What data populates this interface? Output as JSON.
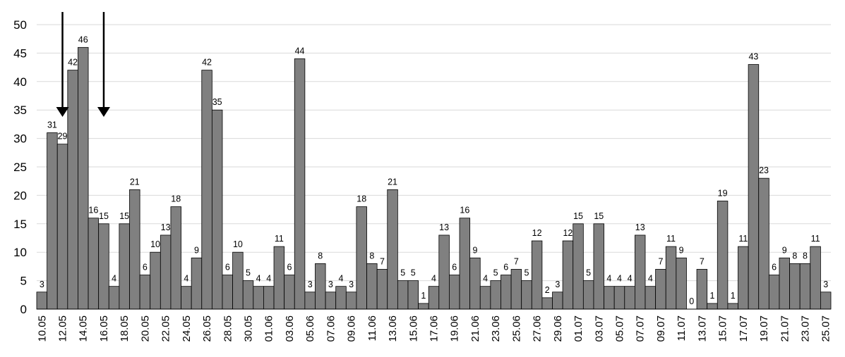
{
  "chart_data": {
    "type": "bar",
    "title": "",
    "xlabel": "",
    "ylabel": "",
    "ylim": [
      0,
      50
    ],
    "yticks": [
      0,
      5,
      10,
      15,
      20,
      25,
      30,
      35,
      40,
      45,
      50
    ],
    "grid": true,
    "legend": "none",
    "bar_color": "#808080",
    "categories": [
      "10.05",
      "11.05",
      "12.05",
      "13.05",
      "14.05",
      "15.05",
      "16.05",
      "17.05",
      "18.05",
      "19.05",
      "20.05",
      "21.05",
      "22.05",
      "23.05",
      "24.05",
      "25.05",
      "26.05",
      "27.05",
      "28.05",
      "29.05",
      "30.05",
      "31.05",
      "01.06",
      "02.06",
      "03.06",
      "04.06",
      "05.06",
      "06.06",
      "07.06",
      "08.06",
      "09.06",
      "10.06",
      "11.06",
      "12.06",
      "13.06",
      "14.06",
      "15.06",
      "16.06",
      "17.06",
      "18.06",
      "19.06",
      "20.06",
      "21.06",
      "22.06",
      "23.06",
      "24.06",
      "25.06",
      "26.06",
      "27.06",
      "28.06",
      "29.06",
      "30.06",
      "01.07",
      "02.07",
      "03.07",
      "04.07",
      "05.07",
      "06.07",
      "07.07",
      "08.07",
      "09.07",
      "10.07",
      "11.07",
      "12.07",
      "13.07",
      "14.07",
      "15.07",
      "16.07",
      "17.07",
      "18.07",
      "19.07",
      "20.07",
      "21.07",
      "22.07",
      "23.07",
      "24.07",
      "25.07"
    ],
    "visible_tick_labels": [
      "10.05",
      "12.05",
      "14.05",
      "16.05",
      "18.05",
      "20.05",
      "22.05",
      "24.05",
      "26.05",
      "28.05",
      "30.05",
      "01.06",
      "03.06",
      "05.06",
      "07.06",
      "09.06",
      "11.06",
      "13.06",
      "15.06",
      "17.06",
      "19.06",
      "21.06",
      "23.06",
      "25.06",
      "27.06",
      "29.06",
      "01.07",
      "03.07",
      "05.07",
      "07.07",
      "09.07",
      "11.07",
      "13.07",
      "15.07",
      "17.07",
      "19.07",
      "21.07",
      "23.07",
      "25.07"
    ],
    "values": [
      3,
      31,
      29,
      42,
      46,
      16,
      15,
      4,
      15,
      21,
      6,
      10,
      13,
      18,
      4,
      9,
      42,
      35,
      6,
      10,
      5,
      4,
      4,
      11,
      6,
      44,
      3,
      8,
      3,
      4,
      3,
      18,
      8,
      7,
      21,
      5,
      5,
      1,
      4,
      13,
      6,
      16,
      9,
      4,
      5,
      6,
      7,
      5,
      12,
      2,
      3,
      12,
      15,
      5,
      15,
      4,
      4,
      4,
      13,
      4,
      7,
      11,
      9,
      0,
      7,
      1,
      19,
      1,
      11,
      43,
      23,
      6,
      9,
      8,
      8,
      11,
      3
    ],
    "annotations": [
      {
        "type": "arrow-down",
        "category": "12.05"
      },
      {
        "type": "arrow-down",
        "category": "16.05"
      }
    ]
  }
}
